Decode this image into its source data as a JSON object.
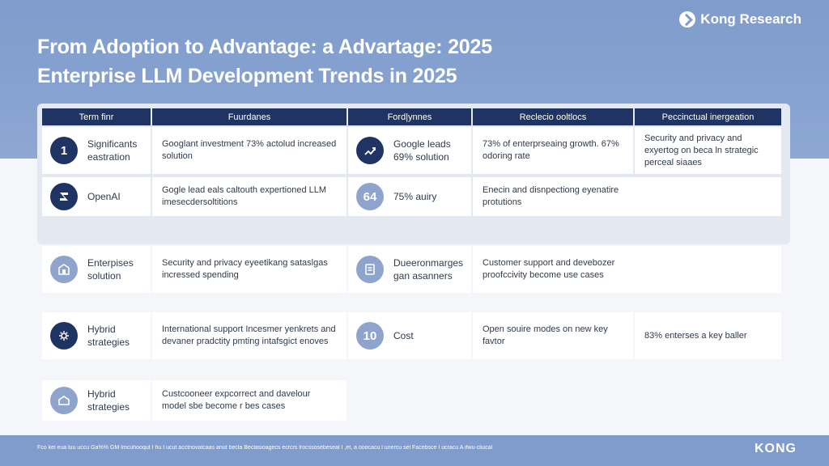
{
  "brand": {
    "name": "Kong Research",
    "icon": "kong-logo-icon"
  },
  "title": {
    "line1": "From Adoption to Advantage: a Advartage: 2025",
    "line2": "Enterprise LLM Development Trends in 2025"
  },
  "table": {
    "headers": [
      "Term finr",
      "Fuurdanes",
      "Ford|ynnes",
      "Reclecio ooltlocs",
      "Peccinctual inergeation"
    ],
    "left_rows": [
      {
        "badge": "1",
        "icon": "number-badge",
        "name": "Significants eastration",
        "text": "Googlant investment 73% actolud increased solution"
      },
      {
        "badge": "",
        "icon": "openai-logo-icon",
        "name": "OpenAI",
        "text": "Gogle lead eals caltouth expertioned LLM imesecdersoltitions"
      },
      {
        "badge": "",
        "icon": "building-icon",
        "name": "Enterpises solution",
        "text": "Security and privacy eyeetikang sataslgas incressed spending"
      },
      {
        "badge": "",
        "icon": "cloud-gear-icon",
        "name": "Hybrid strategies",
        "text": "International support Incesmer yenkrets and devaner pradctity pmting intafsgict enoves"
      },
      {
        "badge": "",
        "icon": "home-outline-icon",
        "name": "Hybrid strategies",
        "text": "Custcooneer expcorrect and davelour model sbe become r bes cases"
      }
    ],
    "right_rows": [
      {
        "badge": "",
        "icon": "chart-trend-icon",
        "name": "Google leads 69% solution",
        "col4": "73% of enterprseaing growth. 67% odoring rate",
        "col5": "Security and privacy and exyertog on beca ln strategic perceal siaaes"
      },
      {
        "badge": "64",
        "icon": "number-badge",
        "name": "75% auiry",
        "col4": "Enecin and disnpectiong eyenatire protutions",
        "col5": ""
      },
      {
        "badge": "",
        "icon": "document-icon",
        "name": "Dueeronmarges gan asanners",
        "col4": "Customer support and devebozer proofccivity become use cases",
        "col5": ""
      },
      {
        "badge": "10",
        "icon": "number-badge",
        "name": "Cost",
        "col4": "Open souire modes on new key favtor",
        "col5": "83% enterses a key baller"
      }
    ]
  },
  "footer": {
    "note": "Fco kei eua luu uccu Ga%% GM Imcuhooqut I hu I ucut acctnovatcaas anut becla Beclasioagecs ecrcrs lrocssosebeseal I ,et, a ooocacu l unercu sel Facebsce I ucracu A ifwu-cliucal",
    "logo": "KONG"
  },
  "colors": {
    "navy": "#1f3463",
    "slate": "#7f9ccc",
    "light_badge": "#8ea4cc",
    "panel": "#e3e8f1"
  }
}
